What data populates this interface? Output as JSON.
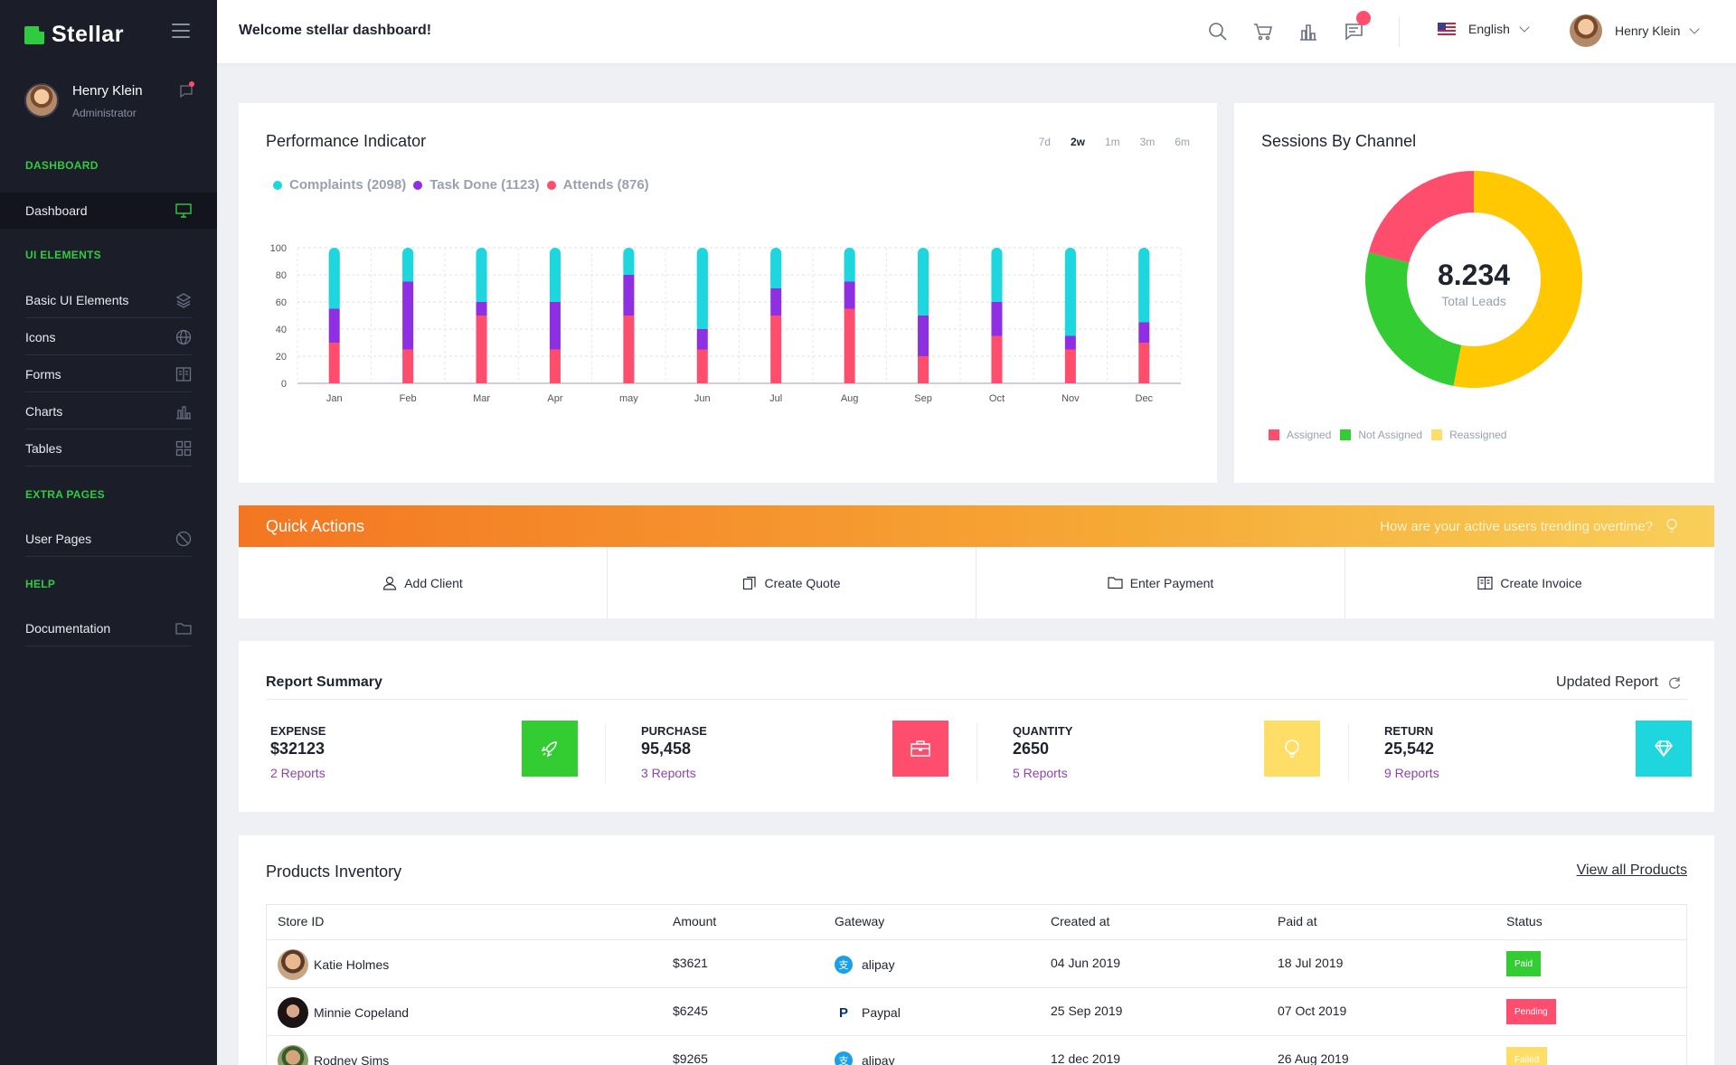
{
  "sidebar": {
    "brand": "Stellar",
    "profile": {
      "name": "Henry Klein",
      "role": "Administrator"
    },
    "sections": [
      {
        "title": "DASHBOARD"
      },
      {
        "title": "UI ELEMENTS"
      },
      {
        "title": "EXTRA PAGES"
      },
      {
        "title": "HELP"
      }
    ],
    "items": [
      {
        "label": "Dashboard",
        "icon": "monitor-icon",
        "active": true
      },
      {
        "label": "Basic UI Elements",
        "icon": "layers-icon"
      },
      {
        "label": "Icons",
        "icon": "globe-icon"
      },
      {
        "label": "Forms",
        "icon": "book-icon"
      },
      {
        "label": "Charts",
        "icon": "bar-chart-icon"
      },
      {
        "label": "Tables",
        "icon": "grid-icon"
      },
      {
        "label": "User Pages",
        "icon": "blocked-icon"
      },
      {
        "label": "Documentation",
        "icon": "folder-icon"
      }
    ]
  },
  "header": {
    "welcome": "Welcome stellar dashboard!",
    "language": "English",
    "user": "Henry Klein"
  },
  "performance": {
    "title": "Performance Indicator",
    "ranges": [
      "7d",
      "2w",
      "1m",
      "3m",
      "6m"
    ],
    "selected_range": "2w",
    "legend": [
      {
        "label": "Complaints (2098)",
        "color": "#1ed6de"
      },
      {
        "label": "Task Done (1123)",
        "color": "#8e2fe3"
      },
      {
        "label": "Attends (876)",
        "color": "#ff4d6d"
      }
    ]
  },
  "chart_data": [
    {
      "type": "bar",
      "stacked": true,
      "categories": [
        "Jan",
        "Feb",
        "Mar",
        "Apr",
        "may",
        "Jun",
        "Jul",
        "Aug",
        "Sep",
        "Oct",
        "Nov",
        "Dec"
      ],
      "ylim": [
        0,
        100
      ],
      "yticks": [
        0,
        20,
        40,
        60,
        80,
        100
      ],
      "grid": true,
      "series": [
        {
          "name": "Attends (876)",
          "color": "#ff4d6d",
          "values": [
            30,
            25,
            50,
            25,
            50,
            25,
            50,
            55,
            20,
            35,
            25,
            30
          ]
        },
        {
          "name": "Task Done (1123)",
          "color": "#8e2fe3",
          "values": [
            25,
            50,
            10,
            35,
            30,
            15,
            20,
            20,
            30,
            25,
            10,
            15
          ]
        },
        {
          "name": "Complaints (2098)",
          "color": "#1ed6de",
          "values": [
            45,
            25,
            40,
            40,
            20,
            60,
            30,
            25,
            50,
            40,
            65,
            55
          ]
        }
      ]
    },
    {
      "type": "pie",
      "donut": true,
      "center_value": "8.234",
      "center_label": "Total Leads",
      "categories": [
        "Assigned",
        "Not Assigned",
        "Reassigned"
      ],
      "values": [
        21,
        26,
        53
      ],
      "colors": [
        "#ff4d6d",
        "#33cc33",
        "#ffc800"
      ],
      "legend_placement": "bottom-left"
    }
  ],
  "sessions": {
    "title": "Sessions By Channel",
    "center_value": "8.234",
    "center_label": "Total Leads",
    "legend": [
      {
        "label": "Assigned",
        "color": "#ff4d6d"
      },
      {
        "label": "Not Assigned",
        "color": "#33cc33"
      },
      {
        "label": "Reassigned",
        "color": "#ffde68"
      }
    ]
  },
  "quick_actions": {
    "title": "Quick Actions",
    "trend_text": "How are your active users trending overtime?",
    "actions": [
      {
        "label": "Add Client",
        "icon": "user-icon"
      },
      {
        "label": "Create Quote",
        "icon": "copy-icon"
      },
      {
        "label": "Enter Payment",
        "icon": "folder-icon"
      },
      {
        "label": "Create Invoice",
        "icon": "invoice-icon"
      }
    ]
  },
  "report": {
    "title": "Report Summary",
    "updated": "Updated Report",
    "stats": [
      {
        "label": "EXPENSE",
        "value": "$32123",
        "link": "2 Reports",
        "color": "#33cc33",
        "icon": "rocket-icon"
      },
      {
        "label": "PURCHASE",
        "value": "95,458",
        "link": "3 Reports",
        "color": "#ff4d6d",
        "icon": "briefcase-icon"
      },
      {
        "label": "QUANTITY",
        "value": "2650",
        "link": "5 Reports",
        "color": "#ffde68",
        "icon": "bulb-icon"
      },
      {
        "label": "RETURN",
        "value": "25,542",
        "link": "9 Reports",
        "color": "#1ed6de",
        "icon": "diamond-icon"
      }
    ]
  },
  "products": {
    "title": "Products Inventory",
    "view_all": "View all Products",
    "columns": [
      "Store ID",
      "Amount",
      "Gateway",
      "Created at",
      "Paid at",
      "Status"
    ],
    "rows": [
      {
        "store": "Katie Holmes",
        "amount": "$3621",
        "gateway": "alipay",
        "created": "04 Jun 2019",
        "paid": "18 Jul 2019",
        "status": "Paid",
        "status_color": "#33cc33"
      },
      {
        "store": "Minnie Copeland",
        "amount": "$6245",
        "gateway": "Paypal",
        "created": "25 Sep 2019",
        "paid": "07 Oct 2019",
        "status": "Pending",
        "status_color": "#ff4d6d"
      },
      {
        "store": "Rodney Sims",
        "amount": "$9265",
        "gateway": "alipay",
        "created": "12 dec 2019",
        "paid": "26 Aug 2019",
        "status": "Failed",
        "status_color": "#ffde68"
      }
    ]
  }
}
